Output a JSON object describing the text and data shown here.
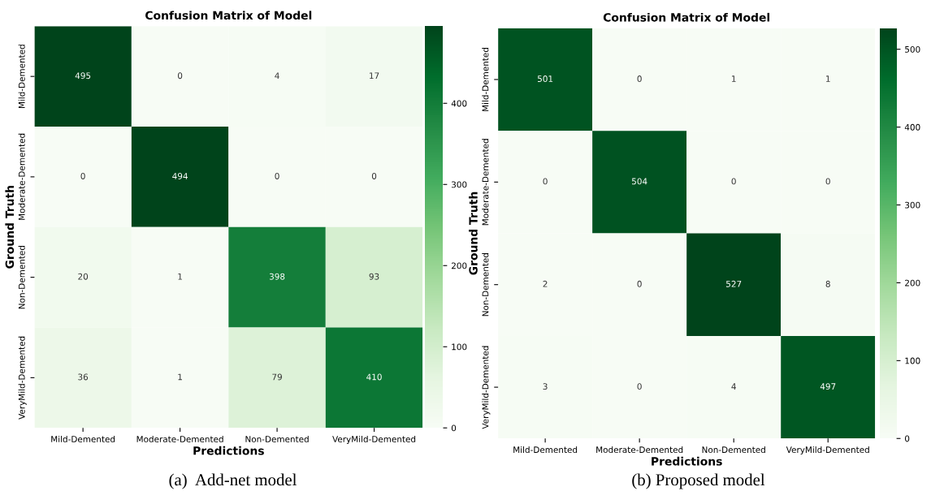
{
  "chart_data": [
    {
      "type": "heatmap",
      "title": "Confusion Matrix of Model",
      "xlabel": "Predictions",
      "ylabel": "Ground Truth",
      "categories": [
        "Mild-Demented",
        "Moderate-Demented",
        "Non-Demented",
        "VeryMild-Demented"
      ],
      "y_categories": [
        "Mild-Demented",
        "Moderate-Demented",
        "Non-Demented",
        "VeryMild-Demented"
      ],
      "cells": [
        [
          495,
          0,
          4,
          17
        ],
        [
          0,
          494,
          0,
          0
        ],
        [
          20,
          1,
          398,
          93
        ],
        [
          36,
          1,
          79,
          410
        ]
      ],
      "clim": [
        0,
        495
      ],
      "cticks": [
        0,
        100,
        200,
        300,
        400
      ],
      "data_labels": true,
      "annotations": [
        "(a)  Add-net model"
      ]
    },
    {
      "type": "heatmap",
      "title": "Confusion Matrix of Model",
      "xlabel": "Predictions",
      "ylabel": "Ground Truth",
      "categories": [
        "Mild-Demented",
        "Moderate-Demented",
        "Non-Demented",
        "VeryMild-Demented"
      ],
      "y_categories": [
        "Mild-Demented",
        "Moderate-Demented",
        "Non-Demented",
        "VeryMild-Demented"
      ],
      "cells": [
        [
          501,
          0,
          1,
          1
        ],
        [
          0,
          504,
          0,
          0
        ],
        [
          2,
          0,
          527,
          8
        ],
        [
          3,
          0,
          4,
          497
        ]
      ],
      "clim": [
        0,
        527
      ],
      "cticks": [
        0,
        100,
        200,
        300,
        400,
        500
      ],
      "data_labels": true,
      "annotations": [
        "(b) Proposed model"
      ]
    }
  ]
}
